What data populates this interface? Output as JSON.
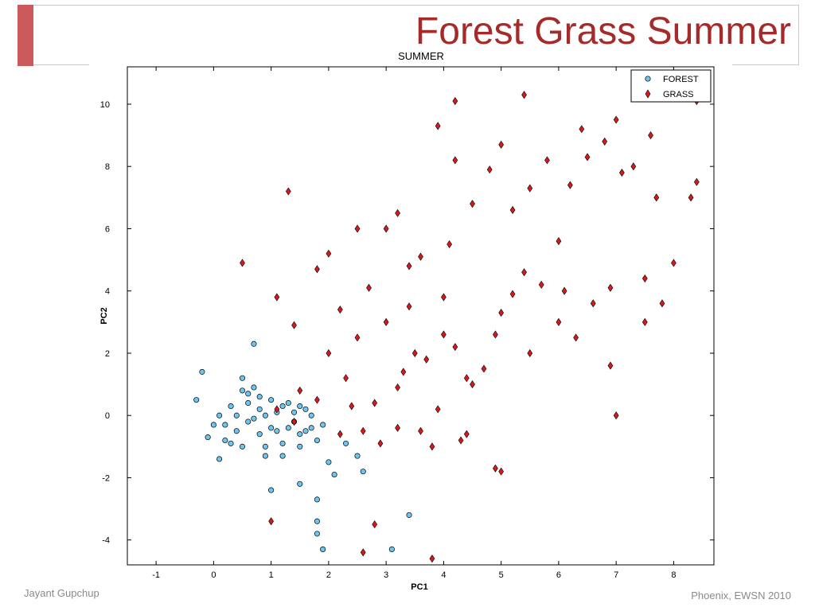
{
  "slide": {
    "title": "Forest Grass Summer",
    "footer_left": "Jayant Gupchup",
    "footer_right": "Phoenix, EWSN 2010"
  },
  "colors": {
    "forest": "#6ec6f0",
    "grass": "#d9181e",
    "accent": "#c9595c",
    "title": "#a52a2a"
  },
  "chart_data": {
    "type": "scatter",
    "title": "SUMMER",
    "xlabel": "PC1",
    "ylabel": "PC2",
    "xlim": [
      -1.5,
      8.7
    ],
    "ylim": [
      -4.8,
      11.2
    ],
    "xticks": [
      -1,
      0,
      1,
      2,
      3,
      4,
      5,
      6,
      7,
      8
    ],
    "yticks": [
      -4,
      -2,
      0,
      2,
      4,
      6,
      8,
      10
    ],
    "grid": false,
    "legend_position": "top-right",
    "series": [
      {
        "name": "FOREST",
        "marker": "circle",
        "color": "#6ec6f0",
        "points": [
          [
            -0.3,
            0.5
          ],
          [
            -0.2,
            1.4
          ],
          [
            -0.1,
            -0.7
          ],
          [
            0.0,
            -0.3
          ],
          [
            0.1,
            0.0
          ],
          [
            0.2,
            -0.8
          ],
          [
            0.1,
            -1.4
          ],
          [
            0.3,
            0.3
          ],
          [
            0.4,
            -0.5
          ],
          [
            0.5,
            1.2
          ],
          [
            0.6,
            0.7
          ],
          [
            0.6,
            -0.2
          ],
          [
            0.7,
            2.3
          ],
          [
            0.7,
            0.9
          ],
          [
            0.8,
            -0.6
          ],
          [
            0.8,
            0.2
          ],
          [
            0.9,
            -1.0
          ],
          [
            1.0,
            0.5
          ],
          [
            1.0,
            -0.4
          ],
          [
            1.1,
            0.1
          ],
          [
            1.2,
            -0.9
          ],
          [
            1.3,
            0.4
          ],
          [
            1.4,
            -0.2
          ],
          [
            1.5,
            0.3
          ],
          [
            1.5,
            -1.0
          ],
          [
            1.6,
            -0.5
          ],
          [
            1.7,
            0.0
          ],
          [
            1.8,
            -0.8
          ],
          [
            1.9,
            -0.3
          ],
          [
            2.0,
            -1.5
          ],
          [
            2.1,
            -1.9
          ],
          [
            2.3,
            -0.9
          ],
          [
            2.5,
            -1.3
          ],
          [
            2.6,
            -1.8
          ],
          [
            1.0,
            -2.4
          ],
          [
            1.5,
            -2.2
          ],
          [
            1.8,
            -2.7
          ],
          [
            1.8,
            -3.4
          ],
          [
            1.8,
            -3.8
          ],
          [
            1.9,
            -4.3
          ],
          [
            3.1,
            -4.3
          ],
          [
            3.4,
            -3.2
          ],
          [
            0.2,
            -0.3
          ],
          [
            0.4,
            0.0
          ],
          [
            0.5,
            -1.0
          ],
          [
            0.6,
            0.4
          ],
          [
            0.7,
            -0.1
          ],
          [
            0.8,
            0.6
          ],
          [
            0.9,
            0.0
          ],
          [
            1.1,
            -0.5
          ],
          [
            1.2,
            0.3
          ],
          [
            1.3,
            -0.4
          ],
          [
            1.4,
            0.1
          ],
          [
            1.5,
            -0.6
          ],
          [
            1.6,
            0.2
          ],
          [
            1.7,
            -0.4
          ],
          [
            1.2,
            -1.3
          ],
          [
            0.9,
            -1.3
          ],
          [
            0.5,
            0.8
          ],
          [
            0.3,
            -0.9
          ]
        ]
      },
      {
        "name": "GRASS",
        "marker": "diamond",
        "color": "#d9181e",
        "points": [
          [
            0.5,
            4.9
          ],
          [
            1.0,
            -3.4
          ],
          [
            1.1,
            3.8
          ],
          [
            1.3,
            7.2
          ],
          [
            1.4,
            2.9
          ],
          [
            1.8,
            4.7
          ],
          [
            2.0,
            5.2
          ],
          [
            2.2,
            3.4
          ],
          [
            2.5,
            6.0
          ],
          [
            2.6,
            -4.4
          ],
          [
            2.8,
            -3.5
          ],
          [
            3.0,
            6.0
          ],
          [
            3.2,
            6.5
          ],
          [
            3.4,
            4.8
          ],
          [
            3.6,
            5.1
          ],
          [
            3.8,
            -4.6
          ],
          [
            3.9,
            9.3
          ],
          [
            4.1,
            5.5
          ],
          [
            4.2,
            10.1
          ],
          [
            4.2,
            8.2
          ],
          [
            4.5,
            6.8
          ],
          [
            4.8,
            7.9
          ],
          [
            5.0,
            8.7
          ],
          [
            5.2,
            6.6
          ],
          [
            5.4,
            10.3
          ],
          [
            5.5,
            7.3
          ],
          [
            5.8,
            8.2
          ],
          [
            6.0,
            5.6
          ],
          [
            6.2,
            7.4
          ],
          [
            6.4,
            9.2
          ],
          [
            6.5,
            8.3
          ],
          [
            6.8,
            8.8
          ],
          [
            7.0,
            9.5
          ],
          [
            7.1,
            7.8
          ],
          [
            7.3,
            8.0
          ],
          [
            7.5,
            4.4
          ],
          [
            7.6,
            9.0
          ],
          [
            7.7,
            7.0
          ],
          [
            8.0,
            4.9
          ],
          [
            8.3,
            7.0
          ],
          [
            8.4,
            10.1
          ],
          [
            8.4,
            7.5
          ],
          [
            7.8,
            3.6
          ],
          [
            7.5,
            3.0
          ],
          [
            6.9,
            4.1
          ],
          [
            6.9,
            1.6
          ],
          [
            7.0,
            0.0
          ],
          [
            5.0,
            -1.8
          ],
          [
            4.9,
            -1.7
          ],
          [
            4.4,
            -0.6
          ],
          [
            4.3,
            -0.8
          ],
          [
            3.8,
            -1.0
          ],
          [
            3.2,
            -0.4
          ],
          [
            2.6,
            -0.5
          ],
          [
            2.2,
            -0.6
          ],
          [
            1.5,
            0.8
          ],
          [
            2.0,
            2.0
          ],
          [
            2.5,
            2.5
          ],
          [
            3.0,
            3.0
          ],
          [
            3.5,
            2.0
          ],
          [
            4.0,
            2.6
          ],
          [
            4.5,
            1.0
          ],
          [
            5.0,
            3.3
          ],
          [
            5.5,
            2.0
          ],
          [
            6.0,
            3.0
          ],
          [
            6.3,
            2.5
          ],
          [
            6.6,
            3.6
          ],
          [
            3.3,
            1.4
          ],
          [
            3.7,
            1.8
          ],
          [
            4.2,
            2.2
          ],
          [
            4.7,
            1.5
          ],
          [
            5.2,
            3.9
          ],
          [
            5.7,
            4.2
          ],
          [
            6.1,
            4.0
          ],
          [
            2.8,
            0.4
          ],
          [
            3.2,
            0.9
          ],
          [
            2.3,
            1.2
          ],
          [
            1.8,
            0.5
          ],
          [
            1.4,
            -0.2
          ],
          [
            1.1,
            0.2
          ],
          [
            3.9,
            0.2
          ],
          [
            4.4,
            1.2
          ],
          [
            4.9,
            2.6
          ],
          [
            5.4,
            4.6
          ],
          [
            2.9,
            -0.9
          ],
          [
            2.4,
            0.3
          ],
          [
            3.6,
            -0.5
          ],
          [
            4.0,
            3.8
          ],
          [
            3.4,
            3.5
          ],
          [
            2.7,
            4.1
          ]
        ]
      }
    ]
  }
}
